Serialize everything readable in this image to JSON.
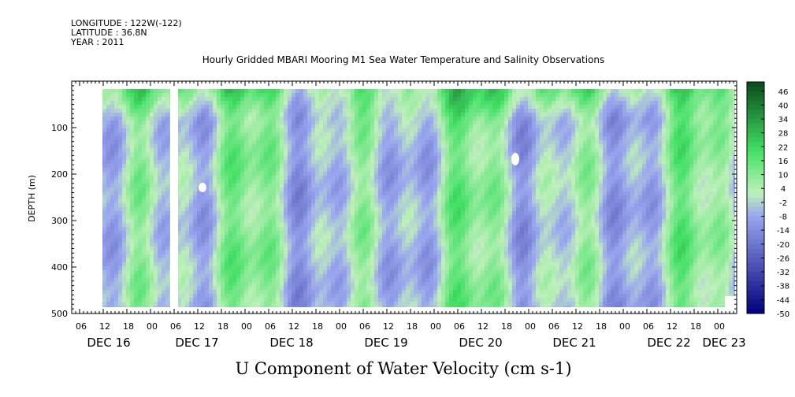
{
  "header": {
    "longitude": "LONGITUDE : 122W(-122)",
    "latitude": "LATITUDE : 36.8N",
    "year": "YEAR : 2011"
  },
  "chart_data": {
    "type": "heatmap",
    "title": "Hourly Gridded MBARI Mooring M1 Sea Water Temperature and Salinity Observations",
    "xlabel": "U Component of Water Velocity (cm s-1)",
    "ylabel": "DEPTH (m)",
    "y_ticks": [
      "100",
      "200",
      "300",
      "400",
      "500"
    ],
    "ylim": [
      500,
      0
    ],
    "x_hour_ticks": [
      "06",
      "12",
      "18",
      "00",
      "06",
      "12",
      "18",
      "00",
      "06",
      "12",
      "18",
      "00",
      "06",
      "12",
      "18",
      "00",
      "06",
      "12",
      "18",
      "00",
      "06",
      "12",
      "18",
      "00",
      "06",
      "12",
      "18",
      "00",
      "06",
      "12",
      "18",
      "00"
    ],
    "x_date_labels": [
      "DEC 16",
      "DEC 17",
      "DEC 18",
      "DEC 19",
      "DEC 20",
      "DEC 21",
      "DEC 22",
      "DEC 23"
    ],
    "colorbar_labels": [
      "46",
      "40",
      "34",
      "28",
      "22",
      "16",
      "10",
      "4",
      "-2",
      "-8",
      "-14",
      "-20",
      "-26",
      "-32",
      "-38",
      "-44",
      "-50"
    ],
    "colorbar_range": [
      -50,
      50
    ],
    "colors": {
      "high": "#0a4a1a",
      "mid_pos": "#44e066",
      "neutral": "#bff0bb",
      "mid_neg": "#9aa6ee",
      "low": "#00007a"
    }
  }
}
